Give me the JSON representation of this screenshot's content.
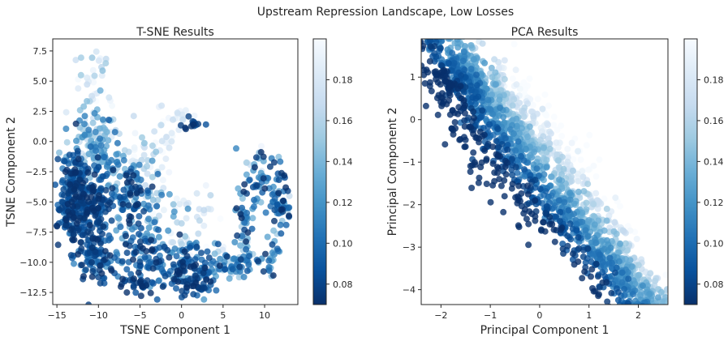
{
  "figure": {
    "suptitle": "Upstream Repression Landscape, Low Losses"
  },
  "chart_data": [
    {
      "type": "scatter",
      "title": "T-SNE Results",
      "xlabel": "TSNE Component 1",
      "ylabel": "TSNE Component 2",
      "xlim": [
        -15.5,
        14
      ],
      "ylim": [
        -13.5,
        8.5
      ],
      "xticks": [
        -15,
        -10,
        -5,
        0,
        5,
        10
      ],
      "xtick_labels": [
        "−15",
        "−10",
        "−5",
        "0",
        "5",
        "10"
      ],
      "yticks": [
        7.5,
        5.0,
        2.5,
        0.0,
        -2.5,
        -5.0,
        -7.5,
        -10.0,
        -12.5
      ],
      "ytick_labels": [
        "7.5",
        "5.0",
        "2.5",
        "0.0",
        "−2.5",
        "−5.0",
        "−7.5",
        "−10.0",
        "−12.5"
      ],
      "colormap": "Blues_r",
      "color_range": [
        0.07,
        0.2
      ],
      "colorbar_ticks": [
        0.08,
        0.1,
        0.12,
        0.14,
        0.16,
        0.18
      ],
      "colorbar_tick_labels": [
        "0.08",
        "0.10",
        "0.12",
        "0.14",
        "0.16",
        "0.18"
      ],
      "grid": false,
      "clusters": [
        {
          "x": -11.5,
          "y": -5.5,
          "sx": 1.6,
          "sy": 1.8,
          "n": 260,
          "c": 0.085,
          "cs": 0.012
        },
        {
          "x": -13.5,
          "y": -5.0,
          "sx": 0.6,
          "sy": 1.4,
          "n": 60,
          "c": 0.082,
          "cs": 0.01
        },
        {
          "x": -10.5,
          "y": -9.5,
          "sx": 1.2,
          "sy": 1.0,
          "n": 80,
          "c": 0.09,
          "cs": 0.015
        },
        {
          "x": -12.5,
          "y": -2.5,
          "sx": 1.0,
          "sy": 0.8,
          "n": 40,
          "c": 0.09,
          "cs": 0.015
        },
        {
          "x": -11.0,
          "y": 0.5,
          "sx": 1.5,
          "sy": 1.2,
          "n": 90,
          "c": 0.135,
          "cs": 0.025
        },
        {
          "x": -10.5,
          "y": 4.5,
          "sx": 1.0,
          "sy": 1.7,
          "n": 40,
          "c": 0.175,
          "cs": 0.02
        },
        {
          "x": -9.0,
          "y": -1.5,
          "sx": 1.2,
          "sy": 1.0,
          "n": 40,
          "c": 0.12,
          "cs": 0.02
        },
        {
          "x": -6.0,
          "y": -4.5,
          "sx": 1.2,
          "sy": 1.5,
          "n": 100,
          "c": 0.1,
          "cs": 0.025
        },
        {
          "x": -4.5,
          "y": -9.5,
          "sx": 1.5,
          "sy": 1.5,
          "n": 90,
          "c": 0.095,
          "cs": 0.02
        },
        {
          "x": -5.5,
          "y": -11.8,
          "sx": 1.2,
          "sy": 0.3,
          "n": 25,
          "c": 0.08,
          "cs": 0.008
        },
        {
          "x": -4.0,
          "y": -1.5,
          "sx": 1.5,
          "sy": 1.5,
          "n": 40,
          "c": 0.17,
          "cs": 0.02
        },
        {
          "x": -2.0,
          "y": 0.0,
          "sx": 1.0,
          "sy": 1.0,
          "n": 20,
          "c": 0.18,
          "cs": 0.015
        },
        {
          "x": 0.0,
          "y": 2.0,
          "sx": 0.6,
          "sy": 0.4,
          "n": 10,
          "c": 0.18,
          "cs": 0.015
        },
        {
          "x": 1.5,
          "y": 1.4,
          "sx": 0.7,
          "sy": 0.3,
          "n": 14,
          "c": 0.08,
          "cs": 0.008
        },
        {
          "x": 0.5,
          "y": -6.5,
          "sx": 1.6,
          "sy": 1.5,
          "n": 40,
          "c": 0.18,
          "cs": 0.015
        },
        {
          "x": 0.8,
          "y": -10.5,
          "sx": 1.8,
          "sy": 1.0,
          "n": 120,
          "c": 0.09,
          "cs": 0.02
        },
        {
          "x": 2.0,
          "y": -12.0,
          "sx": 1.0,
          "sy": 0.3,
          "n": 25,
          "c": 0.08,
          "cs": 0.008
        },
        {
          "x": 5.0,
          "y": -10.0,
          "sx": 1.0,
          "sy": 0.8,
          "n": 30,
          "c": 0.14,
          "cs": 0.03
        },
        {
          "x": 7.5,
          "y": -7.0,
          "sx": 0.5,
          "sy": 2.5,
          "n": 50,
          "c": 0.12,
          "cs": 0.035
        },
        {
          "x": 7.0,
          "y": -10.5,
          "sx": 0.8,
          "sy": 0.5,
          "n": 20,
          "c": 0.11,
          "cs": 0.02
        },
        {
          "x": 9.5,
          "y": -4.0,
          "sx": 1.0,
          "sy": 1.5,
          "n": 40,
          "c": 0.11,
          "cs": 0.02
        },
        {
          "x": 12.0,
          "y": -5.0,
          "sx": 0.6,
          "sy": 1.5,
          "n": 50,
          "c": 0.1,
          "cs": 0.025
        },
        {
          "x": 10.5,
          "y": -9.5,
          "sx": 0.8,
          "sy": 1.2,
          "n": 30,
          "c": 0.12,
          "cs": 0.03
        },
        {
          "x": 9.0,
          "y": -1.5,
          "sx": 1.0,
          "sy": 0.6,
          "n": 15,
          "c": 0.13,
          "cs": 0.03
        },
        {
          "x": -2.5,
          "y": -5.5,
          "sx": 1.2,
          "sy": 1.0,
          "n": 25,
          "c": 0.15,
          "cs": 0.03
        }
      ]
    },
    {
      "type": "scatter",
      "title": "PCA Results",
      "xlabel": "Principal Component 1",
      "ylabel": "Principal Component 2",
      "xlim": [
        -2.4,
        2.6
      ],
      "ylim": [
        -4.35,
        1.9
      ],
      "xticks": [
        -2,
        -1,
        0,
        1,
        2
      ],
      "xtick_labels": [
        "−2",
        "−1",
        "0",
        "1",
        "2"
      ],
      "yticks": [
        1,
        0,
        -1,
        -2,
        -3,
        -4
      ],
      "ytick_labels": [
        "1",
        "0",
        "−1",
        "−2",
        "−3",
        "−4"
      ],
      "colormap": "Blues_r",
      "color_range": [
        0.07,
        0.2
      ],
      "colorbar_ticks": [
        0.08,
        0.1,
        0.12,
        0.14,
        0.16,
        0.18
      ],
      "colorbar_tick_labels": [
        "0.08",
        "0.10",
        "0.12",
        "0.14",
        "0.16",
        "0.18"
      ],
      "grid": false,
      "band": {
        "n": 1800,
        "t_range": [
          -2.2,
          2.3
        ],
        "slope": -1.45,
        "intercept": -1.2,
        "perp_spread": 0.55,
        "color_perp_scale": 0.045,
        "color_base": 0.125
      }
    }
  ]
}
